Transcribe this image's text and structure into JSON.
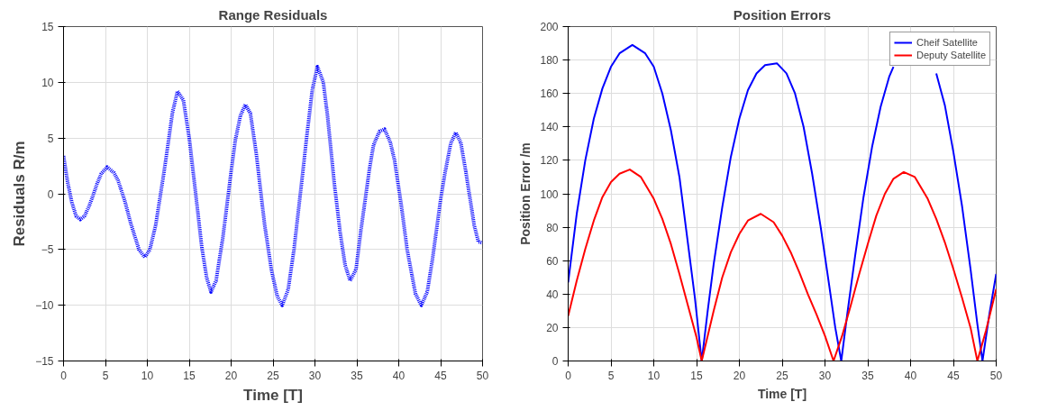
{
  "chart_data": [
    {
      "type": "line",
      "title": "Range Residuals",
      "xlabel": "Time [T]",
      "ylabel": "Residuals R/m",
      "xlim": [
        0,
        50
      ],
      "xticks": [
        0,
        5,
        10,
        15,
        20,
        25,
        30,
        35,
        40,
        45,
        50
      ],
      "ylim": [
        -15,
        15
      ],
      "yticks": [
        -15,
        -10,
        -5,
        0,
        5,
        10,
        15
      ],
      "grid": true,
      "line_style": "dotted",
      "series": [
        {
          "color": "#0000ff",
          "x": [
            0,
            0.5,
            1,
            1.5,
            2,
            2.5,
            3,
            3.5,
            4,
            4.5,
            5.2,
            6,
            6.5,
            7.3,
            8,
            9,
            9.7,
            10.3,
            11,
            12,
            12.5,
            13,
            13.6,
            14.3,
            15,
            16,
            16.5,
            17.1,
            17.6,
            18.2,
            19,
            20,
            20.5,
            21.1,
            21.7,
            22.3,
            23,
            24,
            24.8,
            25.5,
            26.1,
            26.8,
            27.5,
            28.5,
            29,
            29.7,
            30.3,
            31,
            31.5,
            32.3,
            33,
            33.6,
            34.2,
            34.9,
            35.5,
            36.5,
            37,
            37.7,
            38.3,
            39,
            39.5,
            40.3,
            41,
            42,
            42.7,
            43.4,
            44,
            45,
            45.5,
            46.2,
            46.8,
            47.4,
            48,
            49,
            49.5,
            50
          ],
          "values": [
            3.4,
            1.0,
            -0.8,
            -2.0,
            -2.3,
            -2.0,
            -1.2,
            -0.2,
            0.9,
            1.8,
            2.4,
            1.9,
            1.2,
            -0.6,
            -2.6,
            -5.0,
            -5.7,
            -5.0,
            -2.8,
            2.0,
            4.6,
            7.3,
            9.2,
            8.4,
            5.0,
            -1.5,
            -4.8,
            -7.6,
            -8.8,
            -7.8,
            -4.0,
            2.0,
            4.8,
            7.0,
            8.0,
            7.2,
            3.6,
            -2.8,
            -6.8,
            -9.2,
            -10.0,
            -8.6,
            -5.0,
            1.6,
            5.0,
            9.4,
            11.4,
            10.0,
            7.0,
            1.0,
            -3.4,
            -6.4,
            -7.8,
            -6.8,
            -3.2,
            2.2,
            4.4,
            5.6,
            5.8,
            4.6,
            3.0,
            -1.0,
            -5.0,
            -9.0,
            -10.0,
            -8.8,
            -6.0,
            -0.5,
            1.8,
            4.5,
            5.5,
            4.6,
            2.0,
            -2.8,
            -4.3,
            -4.4
          ]
        }
      ]
    },
    {
      "type": "line",
      "title": "Position Errors",
      "xlabel": "Time [T]",
      "ylabel": "Position Error /m",
      "xlim": [
        0,
        50
      ],
      "xticks": [
        0,
        5,
        10,
        15,
        20,
        25,
        30,
        35,
        40,
        45,
        50
      ],
      "ylim": [
        0,
        200
      ],
      "yticks": [
        0,
        20,
        40,
        60,
        80,
        100,
        120,
        140,
        160,
        180,
        200
      ],
      "grid": true,
      "legend": "top right",
      "series": [
        {
          "name": "Cheif Satellite",
          "color": "#0000ff",
          "x": [
            0,
            1,
            2,
            3,
            4,
            5,
            6,
            7.5,
            9,
            10,
            11,
            12,
            13,
            14,
            14.8,
            15.6,
            16.3,
            17,
            18,
            19,
            20,
            21,
            22,
            23,
            24.4,
            25.5,
            26.5,
            27.5,
            28.5,
            29.5,
            30.5,
            31.2,
            31.9,
            32.6,
            33.5,
            34.5,
            35.5,
            36.5,
            37.5,
            38,
            40.5,
            43,
            44,
            45,
            46,
            47,
            47.8,
            48.4,
            49.2,
            50
          ],
          "values": [
            47,
            88,
            120,
            145,
            163,
            176,
            184,
            189,
            184,
            176,
            160,
            138,
            110,
            70,
            38,
            0,
            30,
            58,
            92,
            122,
            145,
            162,
            172,
            177,
            178,
            172,
            160,
            140,
            112,
            80,
            45,
            20,
            0,
            28,
            62,
            98,
            128,
            152,
            170,
            176,
            null,
            172,
            153,
            125,
            93,
            55,
            22,
            0,
            28,
            52
          ]
        },
        {
          "name": "Deputy Satellite",
          "color": "#ff0000",
          "x": [
            0,
            1,
            2,
            3,
            4,
            5,
            6,
            7.2,
            8.5,
            10,
            11,
            12,
            13,
            14,
            15,
            15.6,
            16.3,
            17,
            18,
            19,
            20,
            21,
            22.5,
            24,
            25,
            26,
            27,
            28,
            29,
            30,
            31,
            32,
            33,
            34,
            35,
            36,
            37,
            38,
            39.2,
            40.5,
            42,
            43,
            44,
            45,
            46,
            47,
            47.8,
            48.8,
            50
          ],
          "values": [
            27,
            48,
            67,
            84,
            98,
            107,
            112,
            114.5,
            110,
            97,
            85,
            70,
            52,
            33,
            14,
            0,
            15,
            30,
            50,
            65,
            76,
            84,
            88,
            83,
            75,
            65,
            53,
            40,
            28,
            15,
            0,
            15,
            33,
            52,
            70,
            87,
            100,
            109,
            113,
            110,
            97,
            85,
            71,
            55,
            38,
            20,
            0,
            18,
            43
          ]
        }
      ]
    }
  ]
}
